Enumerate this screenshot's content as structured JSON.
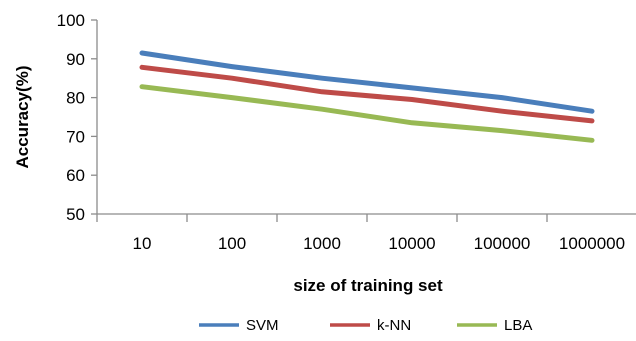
{
  "chart_data": {
    "type": "line",
    "title": "",
    "xlabel": "size of training set",
    "ylabel": "Accuracy(%)",
    "categories": [
      "10",
      "100",
      "1000",
      "10000",
      "100000",
      "1000000"
    ],
    "ylim": [
      50,
      100
    ],
    "yticks": [
      "50",
      "60",
      "70",
      "80",
      "90",
      "100"
    ],
    "grid": false,
    "legend_position": "bottom",
    "series": [
      {
        "name": "SVM",
        "color": "#4a7ebb",
        "values": [
          91.5,
          88.0,
          85.0,
          82.5,
          80.0,
          76.5
        ]
      },
      {
        "name": "k-NN",
        "color": "#be4b48",
        "values": [
          87.8,
          85.0,
          81.5,
          79.5,
          76.5,
          74.0
        ]
      },
      {
        "name": "LBA",
        "color": "#98b954",
        "values": [
          82.8,
          80.0,
          77.0,
          73.5,
          71.5,
          69.0
        ]
      }
    ]
  }
}
